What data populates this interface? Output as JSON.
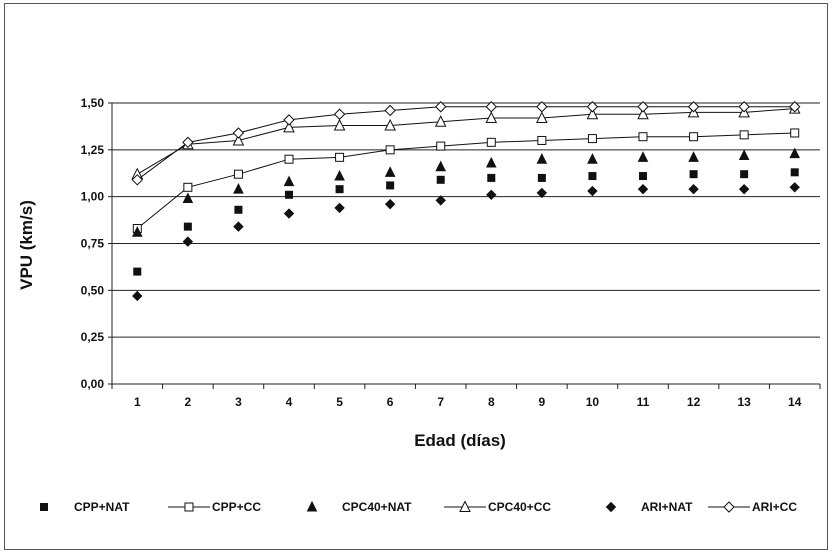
{
  "chart_data": {
    "type": "line",
    "title": "",
    "xlabel": "Edad (días)",
    "ylabel": "VPU (km/s)",
    "x": [
      1,
      2,
      3,
      4,
      5,
      6,
      7,
      8,
      9,
      10,
      11,
      12,
      13,
      14
    ],
    "x_tick_labels": [
      "1",
      "2",
      "3",
      "4",
      "5",
      "6",
      "7",
      "8",
      "9",
      "10",
      "11",
      "12",
      "13",
      "14"
    ],
    "xlim": [
      0.5,
      14.5
    ],
    "ylim": [
      0,
      1.5
    ],
    "y_ticks": [
      0,
      0.25,
      0.5,
      0.75,
      1.0,
      1.25,
      1.5
    ],
    "y_tick_labels": [
      "0,00",
      "0,25",
      "0,50",
      "0,75",
      "1,00",
      "1,25",
      "1,50"
    ],
    "grid": "horizontal",
    "legend_position": "bottom",
    "series": [
      {
        "name": "CPP+NAT",
        "marker": "square-filled",
        "line": false,
        "values": [
          0.6,
          0.84,
          0.93,
          1.01,
          1.04,
          1.06,
          1.09,
          1.1,
          1.1,
          1.11,
          1.11,
          1.12,
          1.12,
          1.13
        ]
      },
      {
        "name": "CPP+CC",
        "marker": "square-open",
        "line": true,
        "values": [
          0.83,
          1.05,
          1.12,
          1.2,
          1.21,
          1.25,
          1.27,
          1.29,
          1.3,
          1.31,
          1.32,
          1.32,
          1.33,
          1.34
        ]
      },
      {
        "name": "CPC40+NAT",
        "marker": "triangle-filled",
        "line": false,
        "values": [
          0.81,
          0.99,
          1.04,
          1.08,
          1.11,
          1.13,
          1.16,
          1.18,
          1.2,
          1.2,
          1.21,
          1.21,
          1.22,
          1.23
        ]
      },
      {
        "name": "CPC40+CC",
        "marker": "triangle-open",
        "line": true,
        "values": [
          1.12,
          1.28,
          1.3,
          1.37,
          1.38,
          1.38,
          1.4,
          1.42,
          1.42,
          1.44,
          1.44,
          1.45,
          1.45,
          1.47
        ]
      },
      {
        "name": "ARI+NAT",
        "marker": "diamond-filled",
        "line": false,
        "values": [
          0.47,
          0.76,
          0.84,
          0.91,
          0.94,
          0.96,
          0.98,
          1.01,
          1.02,
          1.03,
          1.04,
          1.04,
          1.04,
          1.05
        ]
      },
      {
        "name": "ARI+CC",
        "marker": "diamond-open",
        "line": true,
        "values": [
          1.09,
          1.29,
          1.34,
          1.41,
          1.44,
          1.46,
          1.48,
          1.48,
          1.48,
          1.48,
          1.48,
          1.48,
          1.48,
          1.48
        ]
      }
    ]
  }
}
